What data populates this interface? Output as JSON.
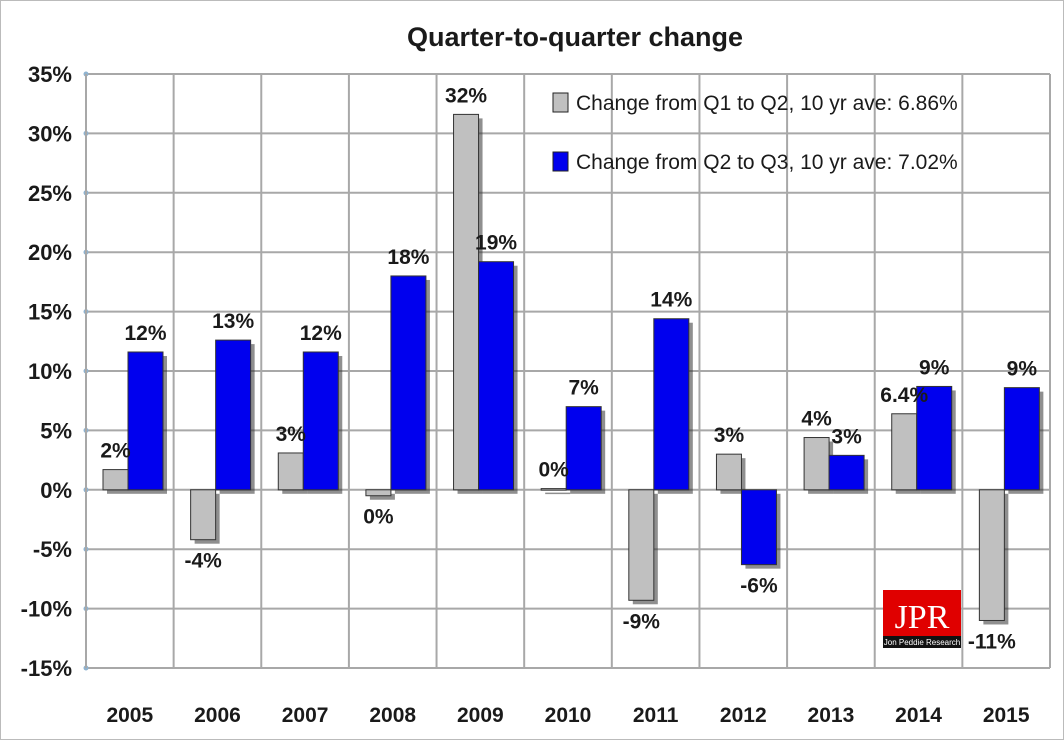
{
  "chart_data": {
    "type": "bar",
    "title": "Quarter-to-quarter change",
    "categories": [
      "2005",
      "2006",
      "2007",
      "2008",
      "2009",
      "2010",
      "2011",
      "2012",
      "2013",
      "2014",
      "2015"
    ],
    "series": [
      {
        "name": "Change from Q1 to Q2, 10 yr ave: 6.86%",
        "color": "#c0c0c0",
        "values": [
          1.7,
          -4.2,
          3.1,
          -0.5,
          31.6,
          0.1,
          -9.3,
          3.0,
          4.4,
          6.4,
          -11.0
        ],
        "labels": [
          "2%",
          "-4%",
          "3%",
          "0%",
          "32%",
          "0%",
          "-9%",
          "3%",
          "4%",
          "6.4%",
          "-11%"
        ]
      },
      {
        "name": "Change from Q2 to Q3, 10 yr ave: 7.02%",
        "color": "#0000ee",
        "values": [
          11.6,
          12.6,
          11.6,
          18.0,
          19.2,
          7.0,
          14.4,
          -6.3,
          2.9,
          8.7,
          8.6
        ],
        "labels": [
          "12%",
          "13%",
          "12%",
          "18%",
          "19%",
          "7%",
          "14%",
          "-6%",
          "3%",
          "9%",
          "9%"
        ]
      }
    ],
    "ylim": [
      -15,
      35
    ],
    "yticks": [
      "-15%",
      "-10%",
      "-5%",
      "0%",
      "5%",
      "10%",
      "15%",
      "20%",
      "25%",
      "30%",
      "35%"
    ],
    "grid": true,
    "legend": "top-right"
  },
  "logo": {
    "text": "JPR",
    "subtext": "Jon Peddie Research"
  }
}
